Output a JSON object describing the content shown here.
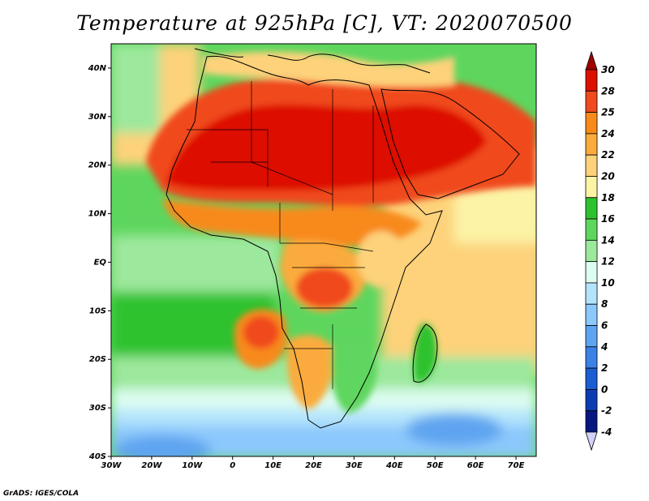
{
  "title": "Temperature at 925hPa [C], VT: 2020070500",
  "credit": "GrADS: IGES/COLA",
  "map": {
    "lon_range": [
      -30,
      75
    ],
    "lat_range": [
      -40,
      45
    ],
    "lon_ticks": [
      {
        "value": -30,
        "label": "30W"
      },
      {
        "value": -20,
        "label": "20W"
      },
      {
        "value": -10,
        "label": "10W"
      },
      {
        "value": 0,
        "label": "0"
      },
      {
        "value": 10,
        "label": "10E"
      },
      {
        "value": 20,
        "label": "20E"
      },
      {
        "value": 30,
        "label": "30E"
      },
      {
        "value": 40,
        "label": "40E"
      },
      {
        "value": 50,
        "label": "50E"
      },
      {
        "value": 60,
        "label": "60E"
      },
      {
        "value": 70,
        "label": "70E"
      }
    ],
    "lat_ticks": [
      {
        "value": 40,
        "label": "40N"
      },
      {
        "value": 30,
        "label": "30N"
      },
      {
        "value": 20,
        "label": "20N"
      },
      {
        "value": 10,
        "label": "10N"
      },
      {
        "value": 0,
        "label": "EQ"
      },
      {
        "value": -10,
        "label": "10S"
      },
      {
        "value": -20,
        "label": "20S"
      },
      {
        "value": -30,
        "label": "30S"
      },
      {
        "value": -40,
        "label": "40S"
      }
    ]
  },
  "colorbar": {
    "levels": [
      "30",
      "28",
      "25",
      "24",
      "22",
      "20",
      "18",
      "16",
      "14",
      "12",
      "10",
      "8",
      "6",
      "4",
      "2",
      "0",
      "-2",
      "-4"
    ],
    "colors": [
      "#a00000",
      "#dd1100",
      "#f04a1e",
      "#f88a1a",
      "#fbab3c",
      "#fdd27a",
      "#fcf3a5",
      "#2ec22e",
      "#5ed65e",
      "#9ce89c",
      "#dcfcf0",
      "#b4e4fc",
      "#8cc8fc",
      "#5ea4f0",
      "#3c82e6",
      "#1a5ed2",
      "#0a3cb4",
      "#061880",
      "#d2d2f8"
    ]
  }
}
